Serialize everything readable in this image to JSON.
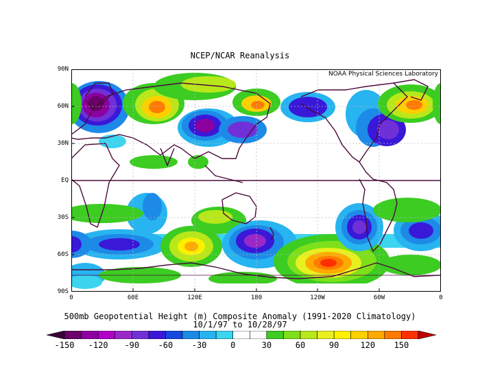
{
  "header": {
    "title": "NCEP/NCAR Reanalysis"
  },
  "map": {
    "credit": "NOAA Physical Sciences Laboratory",
    "lat_labels": [
      "90N",
      "60N",
      "30N",
      "EQ",
      "30S",
      "60S",
      "90S"
    ],
    "lon_labels": [
      "0",
      "60E",
      "120E",
      "180",
      "120W",
      "60W",
      "0"
    ]
  },
  "caption": {
    "line1": "500mb Geopotential Height (m) Composite Anomaly (1991-2020 Climatology)",
    "line2": "10/1/97  to 10/28/97"
  },
  "colorbar": {
    "labels": [
      "-150",
      "-120",
      "-90",
      "-60",
      "-30",
      "0",
      "30",
      "60",
      "90",
      "120",
      "150"
    ],
    "colors": [
      "#6a0068",
      "#8c00a0",
      "#b000c8",
      "#9a28c8",
      "#7030d8",
      "#3a18d8",
      "#1448e0",
      "#1d8ae8",
      "#27b4f0",
      "#3dd4f0",
      "#ffffff",
      "#ffffff",
      "#3ccc22",
      "#7ee01a",
      "#b8e81a",
      "#e8f020",
      "#fff000",
      "#ffd000",
      "#ffaa00",
      "#ff7a00",
      "#ff3000"
    ],
    "end_low_color": "#3a003a",
    "end_high_color": "#c00000"
  }
}
